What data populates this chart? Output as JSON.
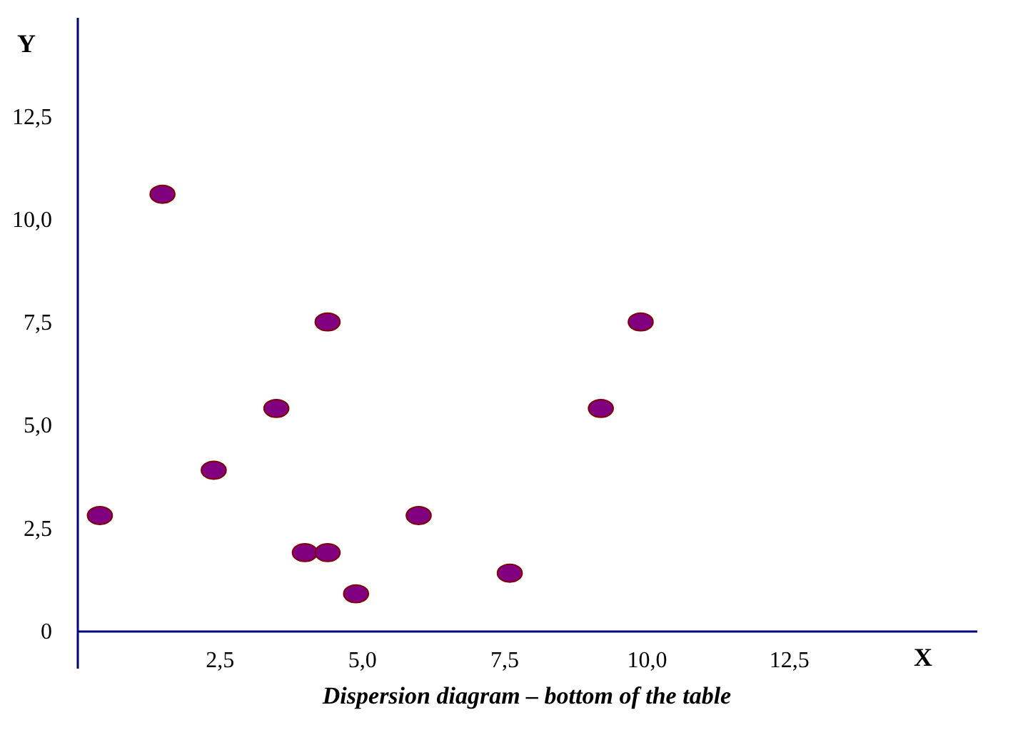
{
  "chart_data": {
    "type": "scatter",
    "title": "Dispersion diagram – bottom of the table",
    "xlabel": "X",
    "ylabel": "Y",
    "x": [
      0.4,
      1.5,
      2.4,
      3.5,
      4.4,
      4.0,
      4.4,
      4.9,
      6.0,
      7.6,
      9.2,
      9.9
    ],
    "series": [
      {
        "color": "#800080",
        "values": [
          2.8,
          10.6,
          3.9,
          5.4,
          7.5,
          1.9,
          1.9,
          0.9,
          2.8,
          1.4,
          5.4,
          7.5
        ]
      }
    ],
    "xlim": [
      0,
      15.8
    ],
    "ylim": [
      -0.9,
      14.9
    ],
    "xticks": [
      {
        "value": 2.5,
        "label": "2,5"
      },
      {
        "value": 5.0,
        "label": "5,0"
      },
      {
        "value": 7.5,
        "label": "7,5"
      },
      {
        "value": 10.0,
        "label": "10,0"
      },
      {
        "value": 12.5,
        "label": "12,5"
      }
    ],
    "yticks": [
      0,
      {
        "value": 2.5,
        "label": "2,5"
      },
      {
        "value": 5.0,
        "label": "5,0"
      },
      {
        "value": 7.5,
        "label": "7,5"
      },
      {
        "value": 10.0,
        "label": "10,0"
      },
      {
        "value": 12.5,
        "label": "12,5"
      }
    ],
    "marker": "circle",
    "grid": false
  }
}
